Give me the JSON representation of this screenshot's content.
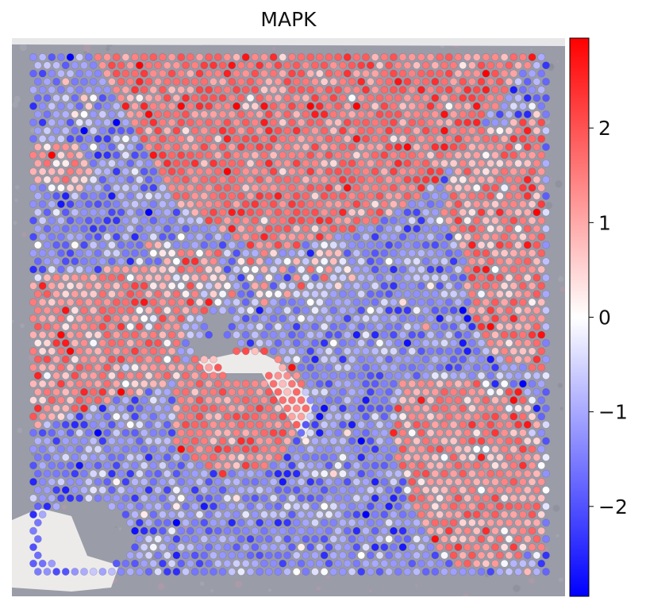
{
  "chart_data": {
    "type": "spatial-scatter",
    "title": "MAPK",
    "colorbar": {
      "colormap": "bwr",
      "vmin": -2.95,
      "vmax": 2.95,
      "ticks": [
        -2,
        -1,
        0,
        1,
        2
      ],
      "tick_labels": [
        "−2",
        "−1",
        "0",
        "1",
        "2"
      ]
    },
    "background": "H&E tissue image (grey-pink)",
    "spot_grid": {
      "rows": 64,
      "cols": 56,
      "staggered": true
    },
    "regions": [
      {
        "description": "top central wedge",
        "polygon": [
          [
            0.12,
            0.0
          ],
          [
            0.98,
            0.0
          ],
          [
            0.75,
            0.28
          ],
          [
            0.65,
            0.33
          ],
          [
            0.58,
            0.35
          ],
          [
            0.45,
            0.38
          ],
          [
            0.38,
            0.35
          ],
          [
            0.28,
            0.28
          ]
        ],
        "mean": 1.6,
        "sd": 0.55
      },
      {
        "description": "right middle",
        "polygon": [
          [
            0.82,
            0.16
          ],
          [
            1.0,
            0.1
          ],
          [
            1.0,
            0.62
          ],
          [
            0.9,
            0.58
          ],
          [
            0.85,
            0.5
          ],
          [
            0.84,
            0.4
          ],
          [
            0.8,
            0.3
          ]
        ],
        "mean": 1.35,
        "sd": 0.6
      },
      {
        "description": "left middle",
        "polygon": [
          [
            0.0,
            0.43
          ],
          [
            0.22,
            0.4
          ],
          [
            0.3,
            0.48
          ],
          [
            0.28,
            0.63
          ],
          [
            0.18,
            0.66
          ],
          [
            0.0,
            0.72
          ]
        ],
        "mean": 1.3,
        "sd": 0.6
      },
      {
        "description": "center bottom blob",
        "polygon": [
          [
            0.27,
            0.62
          ],
          [
            0.34,
            0.55
          ],
          [
            0.44,
            0.56
          ],
          [
            0.52,
            0.6
          ],
          [
            0.54,
            0.7
          ],
          [
            0.48,
            0.79
          ],
          [
            0.37,
            0.81
          ],
          [
            0.28,
            0.76
          ]
        ],
        "mean": 1.45,
        "sd": 0.5
      },
      {
        "description": "lower right",
        "polygon": [
          [
            0.72,
            0.62
          ],
          [
            0.84,
            0.62
          ],
          [
            0.98,
            0.66
          ],
          [
            1.0,
            0.95
          ],
          [
            0.9,
            1.0
          ],
          [
            0.8,
            0.98
          ],
          [
            0.73,
            0.86
          ],
          [
            0.7,
            0.74
          ]
        ],
        "mean": 1.2,
        "sd": 0.6
      },
      {
        "description": "top left patch",
        "polygon": [
          [
            0.0,
            0.17
          ],
          [
            0.08,
            0.17
          ],
          [
            0.12,
            0.22
          ],
          [
            0.1,
            0.27
          ],
          [
            0.0,
            0.25
          ]
        ],
        "mean": 1.1,
        "sd": 0.6
      },
      {
        "description": "left center light",
        "polygon": [
          [
            0.22,
            0.36
          ],
          [
            0.36,
            0.38
          ],
          [
            0.4,
            0.46
          ],
          [
            0.32,
            0.5
          ],
          [
            0.24,
            0.44
          ]
        ],
        "mean": 0.5,
        "sd": 0.8
      },
      {
        "description": "center band light",
        "polygon": [
          [
            0.4,
            0.38
          ],
          [
            0.6,
            0.36
          ],
          [
            0.64,
            0.42
          ],
          [
            0.55,
            0.48
          ],
          [
            0.42,
            0.46
          ]
        ],
        "mean": -0.2,
        "sd": 1.1
      }
    ],
    "default_region": {
      "description": "rest of tissue",
      "mean": -1.3,
      "sd": 0.65
    },
    "holes": [
      {
        "cx": 0.42,
        "cy": 0.6,
        "rx": 0.06,
        "ry": 0.025
      },
      {
        "cx": 0.35,
        "cy": 0.56,
        "rx": 0.05,
        "ry": 0.015
      },
      {
        "cx": 0.1,
        "cy": 0.93,
        "rx": 0.09,
        "ry": 0.07
      },
      {
        "cx": 0.36,
        "cy": 0.52,
        "rx": 0.025,
        "ry": 0.02
      }
    ]
  }
}
